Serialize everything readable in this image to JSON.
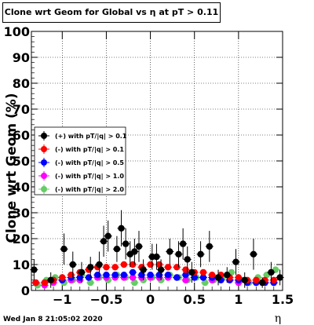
{
  "header": {
    "title": "Clone wrt Geom for Global vs  η at pT > 0.11"
  },
  "footer": {
    "timestamp": "Wed Jan  8 21:05:02 2020"
  },
  "chart_data": {
    "type": "scatter",
    "title": "Clone wrt Geom for Global vs  η at pT > 0.11",
    "xlabel": "η",
    "ylabel": "Clone wrt Geom (%)",
    "xlim": [
      -1.35,
      1.5
    ],
    "ylim": [
      0,
      100
    ],
    "x_ticks": [
      -1,
      -0.5,
      0,
      0.5,
      1,
      1.5
    ],
    "x_tick_labels": [
      "−1",
      "−0.5",
      "0",
      "0.5",
      "1",
      "1.5"
    ],
    "y_ticks": [
      0,
      10,
      20,
      30,
      40,
      50,
      60,
      70,
      80,
      90,
      100
    ],
    "y_tick_labels": [
      "0",
      "10",
      "20",
      "30",
      "40",
      "50",
      "60",
      "70",
      "80",
      "90",
      "100"
    ],
    "grid": true,
    "legend_position": "left-middle",
    "series": [
      {
        "name": "(+) with pT/|q| > 0.1",
        "color": "#000000",
        "x": [
          -1.32,
          -1.13,
          -0.98,
          -0.88,
          -0.78,
          -0.68,
          -0.58,
          -0.53,
          -0.48,
          -0.38,
          -0.33,
          -0.28,
          -0.23,
          -0.18,
          -0.13,
          -0.08,
          0.02,
          0.07,
          0.12,
          0.22,
          0.32,
          0.37,
          0.42,
          0.47,
          0.57,
          0.67,
          0.77,
          0.87,
          0.97,
          1.07,
          1.17,
          1.27,
          1.37,
          1.47
        ],
        "y": [
          8,
          4,
          16,
          10,
          7,
          9,
          10,
          19,
          21,
          16,
          24,
          18,
          14,
          15,
          17,
          8,
          13,
          13,
          8,
          15,
          14,
          18,
          12,
          7,
          14,
          17,
          5,
          6,
          11,
          4,
          14,
          3,
          7,
          5
        ],
        "err": [
          4,
          3,
          6,
          5,
          4,
          4,
          5,
          6,
          6,
          5,
          7,
          6,
          5,
          5,
          6,
          4,
          5,
          5,
          4,
          5,
          5,
          6,
          5,
          4,
          5,
          6,
          3,
          3,
          5,
          3,
          6,
          2,
          4,
          3
        ]
      },
      {
        "name": "(-) with pT/|q| > 0.1",
        "color": "#ff0000",
        "x": [
          -1.3,
          -1.2,
          -1.1,
          -1.0,
          -0.9,
          -0.8,
          -0.7,
          -0.6,
          -0.5,
          -0.4,
          -0.3,
          -0.2,
          -0.1,
          0.0,
          0.1,
          0.2,
          0.3,
          0.4,
          0.5,
          0.6,
          0.7,
          0.8,
          0.9,
          1.0,
          1.1,
          1.2,
          1.3,
          1.4
        ],
        "y": [
          3,
          3,
          4,
          5,
          6,
          7,
          8,
          9,
          9,
          9,
          10,
          10,
          9,
          10,
          10,
          9,
          9,
          8,
          7,
          7,
          6,
          6,
          5,
          5,
          4,
          4,
          4,
          4
        ]
      },
      {
        "name": "(-) with pT/|q| > 0.5",
        "color": "#0000ff",
        "x": [
          -1.3,
          -1.2,
          -1.1,
          -1.0,
          -0.9,
          -0.8,
          -0.7,
          -0.6,
          -0.5,
          -0.4,
          -0.3,
          -0.2,
          -0.1,
          0.0,
          0.1,
          0.2,
          0.3,
          0.4,
          0.5,
          0.6,
          0.7,
          0.8,
          0.9,
          1.0,
          1.1,
          1.2,
          1.3,
          1.4
        ],
        "y": [
          3,
          3,
          4,
          4,
          5,
          5,
          5,
          6,
          6,
          6,
          6,
          7,
          6,
          6,
          6,
          6,
          5,
          6,
          5,
          5,
          5,
          4,
          4,
          4,
          3,
          3,
          3,
          3
        ]
      },
      {
        "name": "(-) with pT/|q| > 1.0",
        "color": "#ff00ff",
        "x": [
          -1.3,
          -1.2,
          -1.1,
          -1.0,
          -0.9,
          -0.8,
          -0.7,
          -0.6,
          -0.5,
          -0.4,
          -0.3,
          -0.2,
          -0.1,
          0.0,
          0.1,
          0.2,
          0.3,
          0.4,
          0.5,
          0.6,
          0.7,
          0.8,
          0.9,
          1.0,
          1.1,
          1.2,
          1.3,
          1.4
        ],
        "y": [
          3,
          2,
          3,
          4,
          4,
          4,
          5,
          5,
          5,
          5,
          5,
          5,
          5,
          5,
          5,
          5,
          5,
          4,
          5,
          5,
          4,
          4,
          4,
          3,
          3,
          3,
          3,
          3
        ]
      },
      {
        "name": "(-) with pT/|q| > 2.0",
        "color": "#66cc66",
        "x": [
          -1.28,
          -1.18,
          -1.08,
          -0.98,
          -0.88,
          -0.78,
          -0.68,
          -0.58,
          -0.48,
          -0.38,
          -0.28,
          -0.18,
          -0.08,
          0.02,
          0.12,
          0.22,
          0.32,
          0.42,
          0.52,
          0.62,
          0.72,
          0.82,
          0.92,
          1.02,
          1.12,
          1.22,
          1.32,
          1.42
        ],
        "y": [
          2,
          4,
          5,
          3,
          4,
          6,
          3,
          5,
          4,
          6,
          5,
          3,
          4,
          5,
          4,
          6,
          5,
          4,
          5,
          3,
          4,
          5,
          7,
          4,
          3,
          5,
          6,
          8
        ]
      }
    ]
  }
}
